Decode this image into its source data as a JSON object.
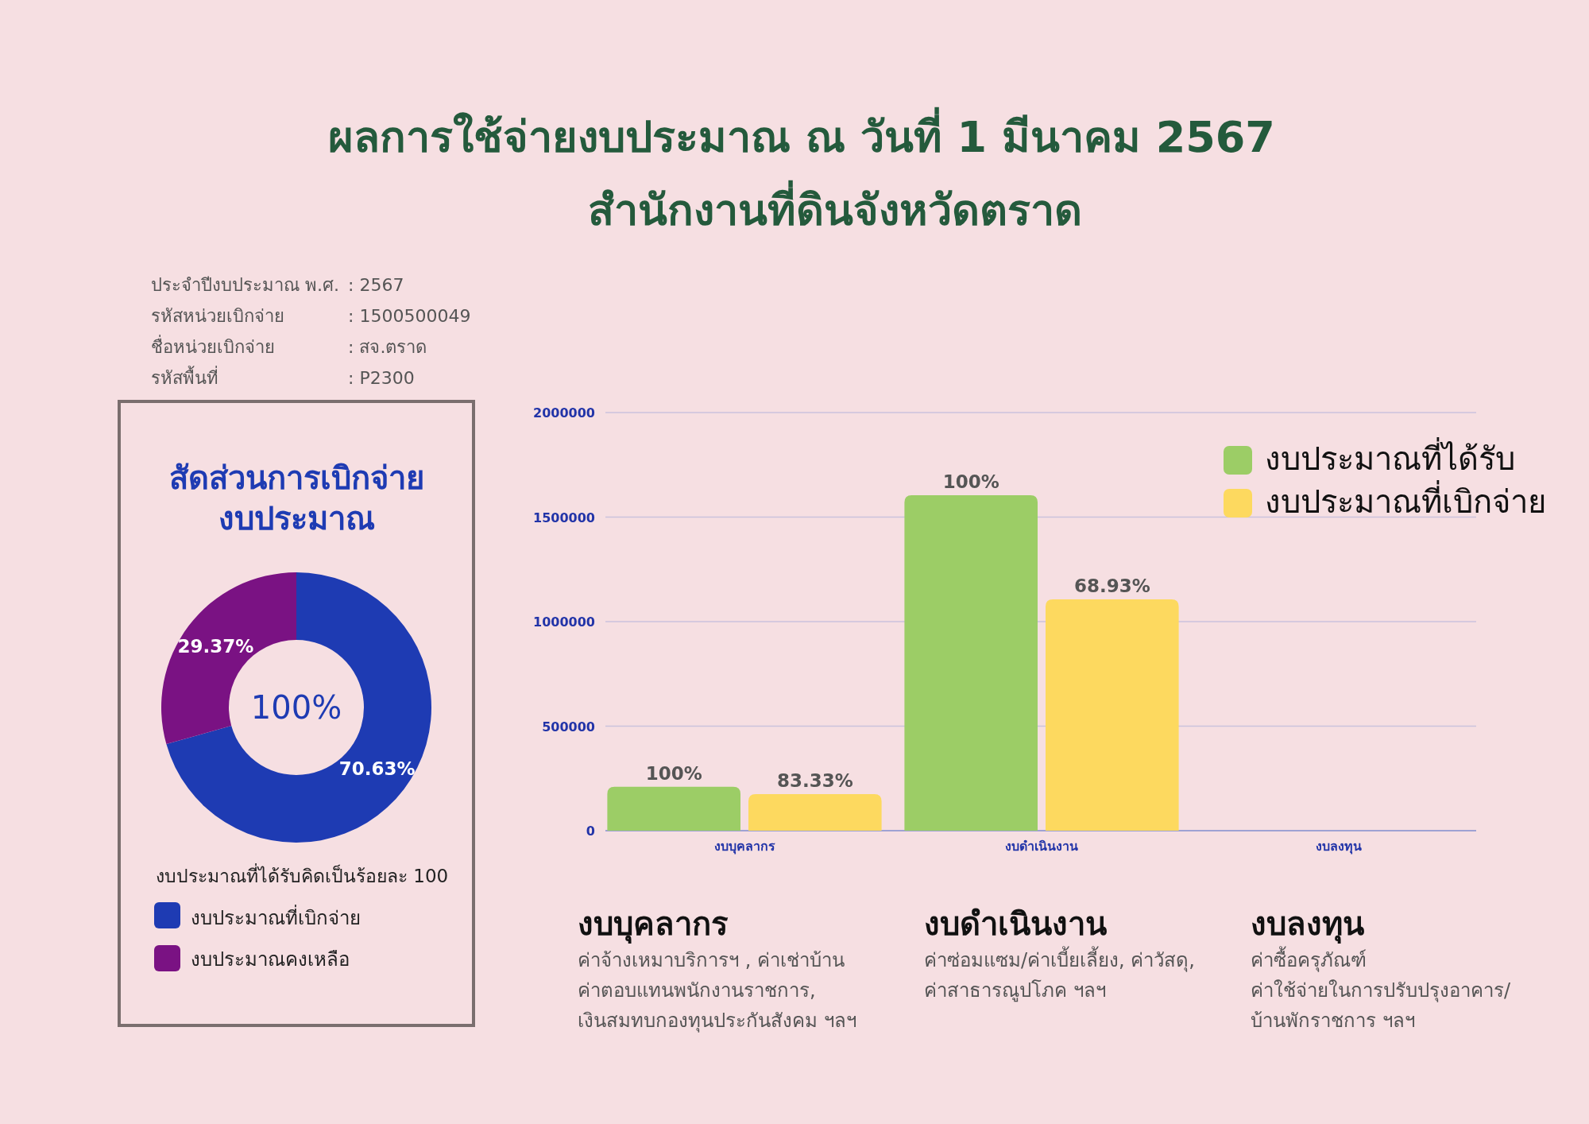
{
  "chart_data": [
    {
      "type": "other",
      "title": "ผลการใช้จ่ายงบประมาณ ณ วันที่ 1 มีนาคม 2567",
      "subtitle": "สำนักงานที่ดินจังหวัดตราด",
      "annotations": [
        "ประจำปีงบประมาณ พ.ศ.",
        ": 2567",
        "รหัสหน่วยเบิกจ่าย",
        ": 1500500049",
        "ชื่อหน่วยเบิกจ่าย",
        ": สจ.ตราด",
        "รหัสพื้นที่",
        ": P2300"
      ]
    },
    {
      "type": "donut",
      "title": "สัดส่วนการเบิกจ่าย งบประมาณ",
      "categories": [
        "งบประมาณที่เบิกจ่าย",
        "งบประมาณคงเหลือ"
      ],
      "values": [
        70.63,
        29.37
      ],
      "colors": [
        "#1e3bb3",
        "#7a1283"
      ],
      "value_labels": [
        "70.63%",
        "29.37%"
      ],
      "annotations": [
        "100%"
      ],
      "legend_title": "งบประมาณที่ได้รับคิดเป็นร้อยละ 100",
      "legend": "bottom"
    },
    {
      "type": "bar",
      "categories": [
        "งบบุคลากร",
        "งบดำเนินงาน",
        "งบลงทุน"
      ],
      "series": [
        {
          "name": "งบประมาณที่ได้รับ",
          "color": "#9ccd66",
          "values": [
            210000,
            1605000,
            null
          ]
        },
        {
          "name": "งบประมาณที่เบิกจ่าย",
          "color": "#fdd95f",
          "values": [
            175000,
            1106000,
            null
          ]
        }
      ],
      "ylim": [
        0,
        2000000
      ],
      "yticks": [
        0,
        500000,
        1000000,
        1500000,
        2000000
      ],
      "grid": "y",
      "legend": "top right",
      "annotations": [
        "100%",
        "83.33%",
        "100%",
        "68.93%"
      ]
    },
    {
      "type": "other",
      "title": "งบบุคลากร",
      "annotations": [
        "ค่าจ้างเหมาบริการฯ , ค่าเช่าบ้าน",
        "ค่าตอบแทนพนักงานราชการ,",
        "เงินสมทบกองทุนประกันสังคม ฯลฯ"
      ]
    },
    {
      "type": "other",
      "title": "งบดำเนินงาน",
      "annotations": [
        "ค่าซ่อมแซม/ค่าเบี้ยเลี้ยง, ค่าวัสดุ,",
        "ค่าสาธารณูปโภค ฯลฯ"
      ]
    },
    {
      "type": "other",
      "title": "งบลงทุน",
      "annotations": [
        "ค่าซื้อครุภัณฑ์",
        "ค่าใช้จ่ายในการปรับปรุงอาคาร/",
        "บ้านพักราชการ ฯลฯ"
      ]
    }
  ]
}
